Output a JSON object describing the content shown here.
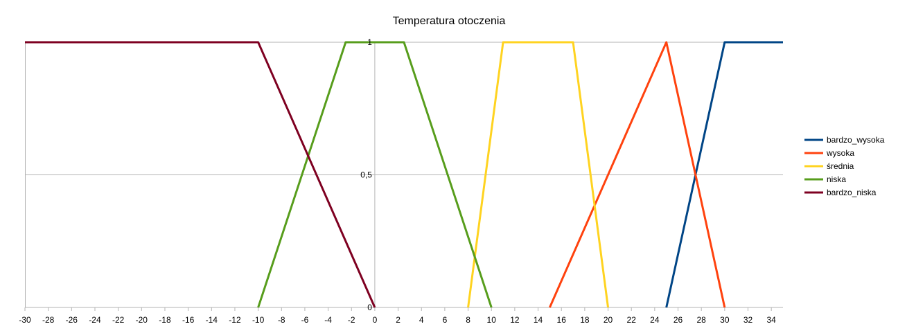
{
  "chart_data": {
    "type": "line",
    "title": "Temperatura otoczenia",
    "xlabel": "",
    "ylabel": "",
    "xlim": [
      -30,
      35
    ],
    "ylim": [
      0,
      1
    ],
    "x_ticks": [
      -30,
      -28,
      -26,
      -24,
      -22,
      -20,
      -18,
      -16,
      -14,
      -12,
      -10,
      -8,
      -6,
      -4,
      -2,
      0,
      2,
      4,
      6,
      8,
      10,
      12,
      14,
      16,
      18,
      20,
      22,
      24,
      26,
      28,
      30,
      32,
      34
    ],
    "y_ticks": [
      {
        "value": 0,
        "label": "0"
      },
      {
        "value": 0.5,
        "label": "0,5"
      },
      {
        "value": 1,
        "label": "1"
      }
    ],
    "grid": "horizontal",
    "legend_position": "right",
    "series": [
      {
        "name": "bardzo_wysoka",
        "color": "#004586",
        "points": [
          [
            25,
            0
          ],
          [
            30,
            1
          ],
          [
            35,
            1
          ]
        ]
      },
      {
        "name": "wysoka",
        "color": "#ff420e",
        "points": [
          [
            15,
            0
          ],
          [
            25,
            1
          ],
          [
            30,
            0
          ]
        ]
      },
      {
        "name": "średnia",
        "color": "#ffd320",
        "points": [
          [
            8,
            0
          ],
          [
            11,
            1
          ],
          [
            17,
            1
          ],
          [
            20,
            0
          ]
        ]
      },
      {
        "name": "niska",
        "color": "#579d1c",
        "points": [
          [
            -10,
            0
          ],
          [
            -2.5,
            1
          ],
          [
            2.5,
            1
          ],
          [
            10,
            0
          ]
        ]
      },
      {
        "name": "bardzo_niska",
        "color": "#7e0021",
        "points": [
          [
            -30,
            1
          ],
          [
            -10,
            1
          ],
          [
            0,
            0
          ]
        ]
      }
    ]
  }
}
